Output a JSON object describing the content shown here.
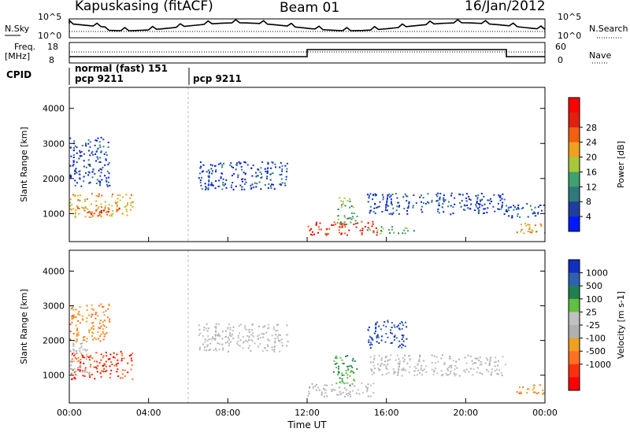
{
  "header": {
    "station": "Kapuskasing (fitACF)",
    "beam": "Beam 01",
    "date": "16/Jan/2012"
  },
  "panels": {
    "nsky": {
      "label": "N.Sky",
      "right_label": "N.Search",
      "ticks": [
        "10^5",
        "10^0"
      ],
      "right_ticks": [
        "10^5",
        "10^0"
      ]
    },
    "freq": {
      "label_line1": "Freq.",
      "label_line2": "[MHz]",
      "ticks": [
        "18",
        "8"
      ],
      "right_label": "Nave",
      "right_ticks": [
        "60",
        "0"
      ]
    },
    "cpid": {
      "label": "CPID",
      "mode1": "normal (fast) 151",
      "mode1_sub": "pcp 9211",
      "mode2": "pcp 9211"
    }
  },
  "colors": {
    "power_scale": [
      "#0018ff",
      "#1f3ea0",
      "#2e7a7a",
      "#3fa070",
      "#a8c838",
      "#f0a020",
      "#f06010",
      "#e02010",
      "#ff0000"
    ],
    "velocity_scale": [
      "#1030c0",
      "#3060b0",
      "#208050",
      "#60c040",
      "#c0c0c0",
      "#b0b0b0",
      "#f0a020",
      "#ff7020",
      "#ff3010",
      "#ff0000"
    ]
  },
  "chart_data": [
    {
      "type": "heatmap",
      "name": "power",
      "ylabel": "Slant Range [km]",
      "xlabel": "Time UT",
      "x_ticks": [
        "00:00",
        "04:00",
        "08:00",
        "12:00",
        "16:00",
        "20:00",
        "00:00"
      ],
      "y_ticks": [
        "1000",
        "2000",
        "3000",
        "4000"
      ],
      "ylim": [
        200,
        4600
      ],
      "xlim_hours": [
        0,
        24
      ],
      "colorbar_label": "Power [dB]",
      "colorbar_ticks": [
        "4",
        "8",
        "12",
        "16",
        "20",
        "24",
        "28"
      ],
      "regions": [
        {
          "t0": 0.0,
          "t1": 3.2,
          "r0": 900,
          "r1": 1600,
          "level": "high"
        },
        {
          "t0": 0.8,
          "t1": 2.5,
          "r0": 1000,
          "r1": 1200,
          "level": "max"
        },
        {
          "t0": 0.0,
          "t1": 2.0,
          "r0": 1800,
          "r1": 3200,
          "level": "low"
        },
        {
          "t0": 6.5,
          "t1": 11.0,
          "r0": 1700,
          "r1": 2500,
          "level": "low"
        },
        {
          "t0": 12.0,
          "t1": 15.5,
          "r0": 400,
          "r1": 800,
          "level": "max"
        },
        {
          "t0": 13.5,
          "t1": 14.5,
          "r0": 700,
          "r1": 1500,
          "level": "mid"
        },
        {
          "t0": 15.0,
          "t1": 17.5,
          "r0": 450,
          "r1": 650,
          "level": "mid"
        },
        {
          "t0": 15.0,
          "t1": 22.0,
          "r0": 1000,
          "r1": 1600,
          "level": "low"
        },
        {
          "t0": 22.0,
          "t1": 24.0,
          "r0": 900,
          "r1": 1300,
          "level": "low"
        },
        {
          "t0": 22.5,
          "t1": 24.0,
          "r0": 450,
          "r1": 750,
          "level": "high"
        }
      ]
    },
    {
      "type": "heatmap",
      "name": "velocity",
      "ylabel": "Slant Range [km]",
      "xlabel": "Time UT",
      "x_ticks": [
        "00:00",
        "04:00",
        "08:00",
        "12:00",
        "16:00",
        "20:00",
        "00:00"
      ],
      "y_ticks": [
        "1000",
        "2000",
        "3000",
        "4000"
      ],
      "ylim": [
        200,
        4600
      ],
      "xlim_hours": [
        0,
        24
      ],
      "colorbar_label": "Velocity [m s-1]",
      "colorbar_ticks": [
        "1000",
        "500",
        "100",
        "25",
        "-25",
        "-100",
        "-500",
        "-1000"
      ],
      "regions": [
        {
          "t0": 0.0,
          "t1": 3.2,
          "r0": 900,
          "r1": 1700,
          "level": "neg_high"
        },
        {
          "t0": 0.0,
          "t1": 1.0,
          "r0": 1000,
          "r1": 2000,
          "level": "gray"
        },
        {
          "t0": 0.0,
          "t1": 2.0,
          "r0": 2000,
          "r1": 3100,
          "level": "neg_mid"
        },
        {
          "t0": 6.5,
          "t1": 11.0,
          "r0": 1700,
          "r1": 2500,
          "level": "gray"
        },
        {
          "t0": 12.0,
          "t1": 15.5,
          "r0": 400,
          "r1": 800,
          "level": "gray"
        },
        {
          "t0": 13.3,
          "t1": 14.5,
          "r0": 700,
          "r1": 1600,
          "level": "pos_mid"
        },
        {
          "t0": 15.0,
          "t1": 17.0,
          "r0": 1800,
          "r1": 2600,
          "level": "pos_high"
        },
        {
          "t0": 15.0,
          "t1": 22.0,
          "r0": 1000,
          "r1": 1600,
          "level": "gray"
        },
        {
          "t0": 22.5,
          "t1": 24.0,
          "r0": 450,
          "r1": 750,
          "level": "neg_mid"
        }
      ]
    }
  ]
}
